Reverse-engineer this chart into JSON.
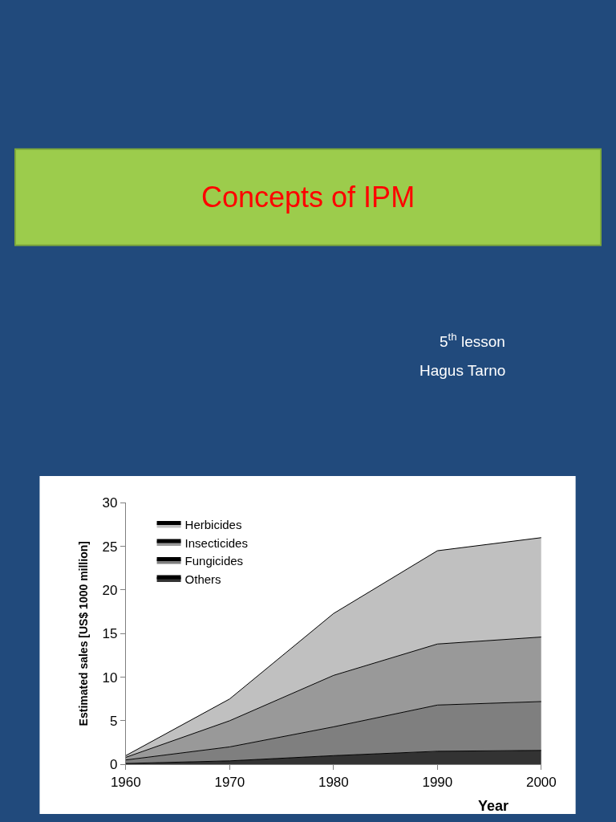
{
  "chart_data": {
    "type": "area",
    "stacked": true,
    "title": "Concepts of IPM",
    "subtitle": "5$^{th}$ lesson",
    "annotations": [
      "Hagus Tarno"
    ],
    "xlabel": "Year",
    "ylabel": "Estimated sales [US$ 1000 million]",
    "x": [
      1960,
      1970,
      1980,
      1990,
      2000
    ],
    "series": [
      {
        "name": "Others",
        "color": "#333333",
        "values": [
          0.1,
          0.4,
          1.0,
          1.5,
          1.6
        ]
      },
      {
        "name": "Fungicides",
        "color": "#7f7f7f",
        "values": [
          0.4,
          1.6,
          3.3,
          5.3,
          5.6
        ]
      },
      {
        "name": "Insecticides",
        "color": "#999999",
        "values": [
          0.3,
          3.0,
          5.9,
          7.0,
          7.4
        ]
      },
      {
        "name": "Herbicides",
        "color": "#c0c0c0",
        "values": [
          0.2,
          2.5,
          7.1,
          10.7,
          11.4
        ]
      }
    ],
    "xlim": [
      1960,
      2000
    ],
    "xticks": [
      1960,
      1970,
      1980,
      1990,
      2000
    ],
    "ylim": [
      0,
      30
    ],
    "yticks": [
      0,
      5,
      10,
      15,
      20,
      25,
      30
    ],
    "legend": "top left"
  }
}
